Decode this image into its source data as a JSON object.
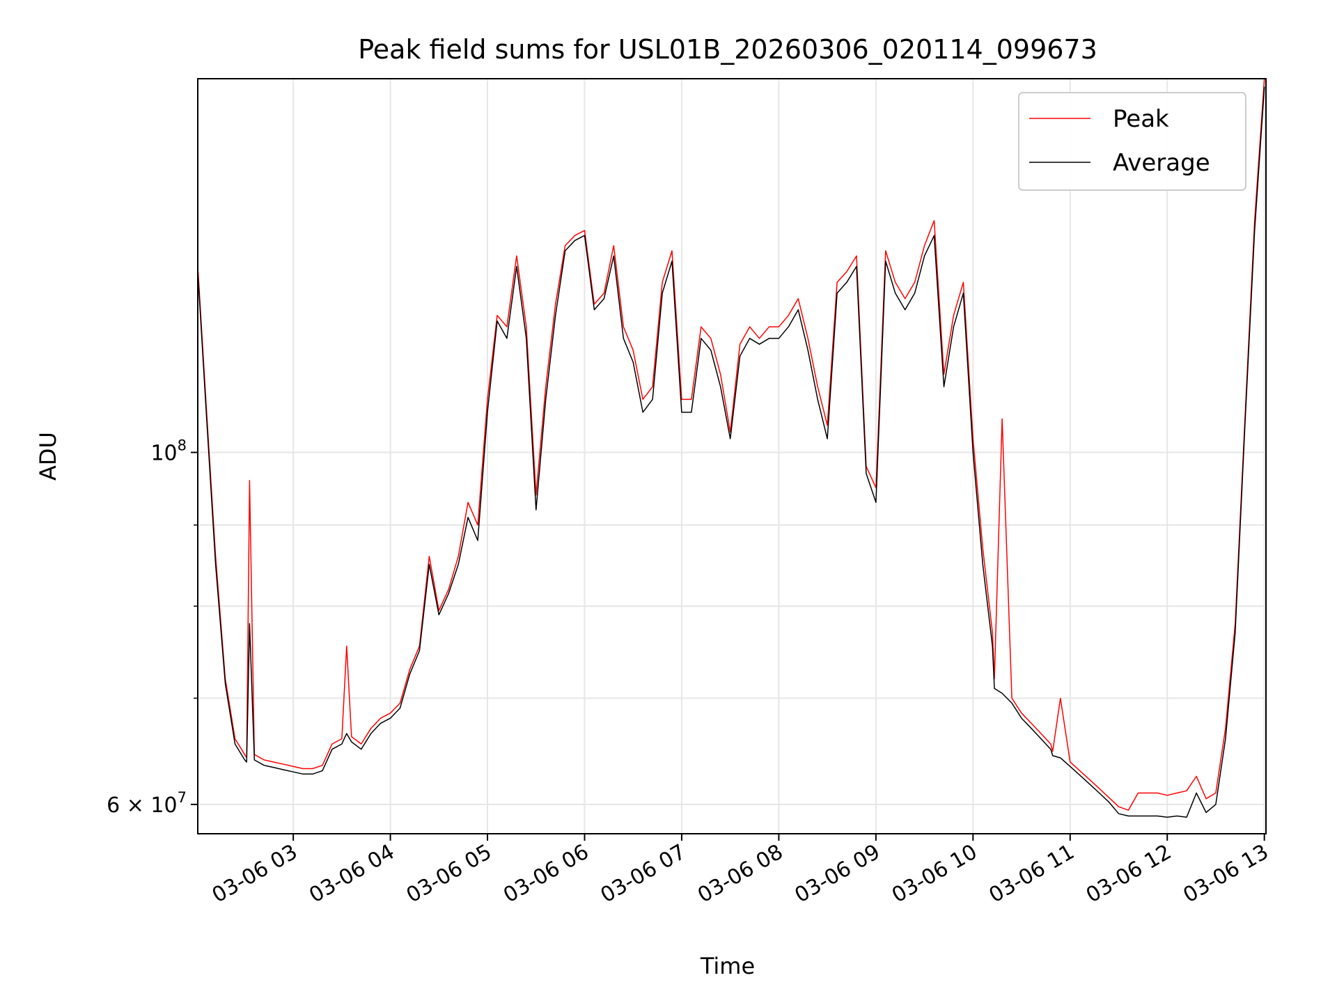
{
  "chart_data": {
    "type": "line",
    "title": "Peak field sums for USL01B_20260306_020114_099673",
    "xlabel": "Time",
    "ylabel": "ADU",
    "y_scale": "log",
    "ylim": [
      57500000,
      172000000
    ],
    "xlim": [
      "03-06 02:01",
      "03-06 13:01"
    ],
    "grid": true,
    "legend_position": "top-right",
    "x_ticks": [
      "03-06 03",
      "03-06 04",
      "03-06 05",
      "03-06 06",
      "03-06 07",
      "03-06 08",
      "03-06 09",
      "03-06 10",
      "03-06 11",
      "03-06 12",
      "03-06 13"
    ],
    "x_tick_hours": [
      3,
      4,
      5,
      6,
      7,
      8,
      9,
      10,
      11,
      12,
      13
    ],
    "y_ticks": [
      {
        "value": 100000000,
        "base": "10",
        "exp": "8"
      },
      {
        "value": 60000000,
        "base": "6 × 10",
        "exp": "7"
      }
    ],
    "y_minor_ticks": [
      70000000,
      80000000,
      90000000
    ],
    "x_hours": [
      2.02,
      2.1,
      2.2,
      2.3,
      2.4,
      2.5,
      2.52,
      2.55,
      2.6,
      2.7,
      2.8,
      2.9,
      3.0,
      3.1,
      3.2,
      3.3,
      3.4,
      3.5,
      3.55,
      3.6,
      3.7,
      3.8,
      3.9,
      4.0,
      4.1,
      4.2,
      4.3,
      4.4,
      4.5,
      4.6,
      4.7,
      4.8,
      4.9,
      5.0,
      5.1,
      5.2,
      5.3,
      5.4,
      5.5,
      5.6,
      5.7,
      5.8,
      5.9,
      6.0,
      6.1,
      6.2,
      6.3,
      6.4,
      6.5,
      6.6,
      6.7,
      6.8,
      6.9,
      7.0,
      7.1,
      7.2,
      7.3,
      7.4,
      7.5,
      7.6,
      7.7,
      7.8,
      7.9,
      8.0,
      8.1,
      8.2,
      8.3,
      8.4,
      8.5,
      8.6,
      8.7,
      8.8,
      8.9,
      9.0,
      9.1,
      9.2,
      9.3,
      9.4,
      9.5,
      9.6,
      9.7,
      9.8,
      9.9,
      10.0,
      10.1,
      10.2,
      10.22,
      10.3,
      10.4,
      10.5,
      10.6,
      10.7,
      10.8,
      10.82,
      10.9,
      11.0,
      11.1,
      11.2,
      11.3,
      11.4,
      11.5,
      11.6,
      11.7,
      11.8,
      11.9,
      12.0,
      12.1,
      12.2,
      12.3,
      12.4,
      12.5,
      12.6,
      12.7,
      12.8,
      12.9,
      13.0
    ],
    "series": [
      {
        "name": "Peak",
        "color": "#ff0000",
        "values": [
          130000000,
          108000000,
          86000000,
          72000000,
          66000000,
          64500000,
          64200000,
          96000000,
          64500000,
          64000000,
          63800000,
          63600000,
          63400000,
          63200000,
          63200000,
          63500000,
          65500000,
          66000000,
          75500000,
          66200000,
          65500000,
          67000000,
          68000000,
          68500000,
          69500000,
          73000000,
          75500000,
          86000000,
          79500000,
          82000000,
          86000000,
          93000000,
          90000000,
          108000000,
          122000000,
          120000000,
          133000000,
          120000000,
          94000000,
          110000000,
          124000000,
          135000000,
          137000000,
          138000000,
          124000000,
          126000000,
          135000000,
          120000000,
          116000000,
          108000000,
          110000000,
          128000000,
          134000000,
          108000000,
          108000000,
          120000000,
          118000000,
          112000000,
          103000000,
          117000000,
          120000000,
          118000000,
          120000000,
          120000000,
          122000000,
          125000000,
          118000000,
          110000000,
          104000000,
          128000000,
          130000000,
          133000000,
          98000000,
          95000000,
          134000000,
          128000000,
          125000000,
          128000000,
          135000000,
          140000000,
          112000000,
          122000000,
          128000000,
          102000000,
          87000000,
          77000000,
          72000000,
          105000000,
          70000000,
          68500000,
          67500000,
          66500000,
          65500000,
          64800000,
          70000000,
          63800000,
          63000000,
          62200000,
          61400000,
          60600000,
          59800000,
          59500000,
          61000000,
          61000000,
          61000000,
          60800000,
          61000000,
          61200000,
          62500000,
          60500000,
          61000000,
          67000000,
          78000000,
          105000000,
          140000000,
          172000000
        ]
      },
      {
        "name": "Average",
        "color": "#000000",
        "values": [
          129000000,
          107000000,
          85000000,
          71500000,
          65500000,
          64000000,
          63800000,
          78000000,
          64000000,
          63500000,
          63300000,
          63100000,
          62900000,
          62700000,
          62700000,
          63000000,
          65000000,
          65500000,
          66500000,
          65700000,
          65000000,
          66500000,
          67500000,
          68000000,
          69000000,
          72500000,
          75000000,
          85000000,
          79000000,
          81500000,
          85000000,
          91000000,
          88000000,
          106000000,
          121000000,
          118000000,
          131000000,
          118000000,
          92000000,
          108000000,
          122000000,
          134000000,
          136000000,
          137000000,
          123000000,
          125000000,
          133000000,
          118000000,
          114000000,
          106000000,
          108000000,
          126000000,
          132000000,
          106000000,
          106000000,
          118000000,
          116000000,
          110000000,
          102000000,
          115000000,
          118000000,
          117000000,
          118000000,
          118000000,
          120000000,
          123000000,
          116000000,
          108000000,
          102000000,
          126000000,
          128000000,
          131000000,
          97000000,
          93000000,
          132000000,
          126000000,
          123000000,
          126000000,
          133000000,
          137000000,
          110000000,
          120000000,
          126000000,
          100000000,
          85000000,
          75500000,
          71000000,
          70500000,
          69500000,
          68000000,
          67000000,
          66000000,
          65000000,
          64400000,
          64200000,
          63400000,
          62600000,
          61800000,
          61000000,
          60200000,
          59200000,
          59000000,
          59000000,
          59000000,
          59000000,
          58900000,
          59000000,
          58900000,
          61000000,
          59300000,
          60000000,
          66000000,
          77000000,
          104000000,
          138000000,
          170000000
        ]
      }
    ]
  }
}
